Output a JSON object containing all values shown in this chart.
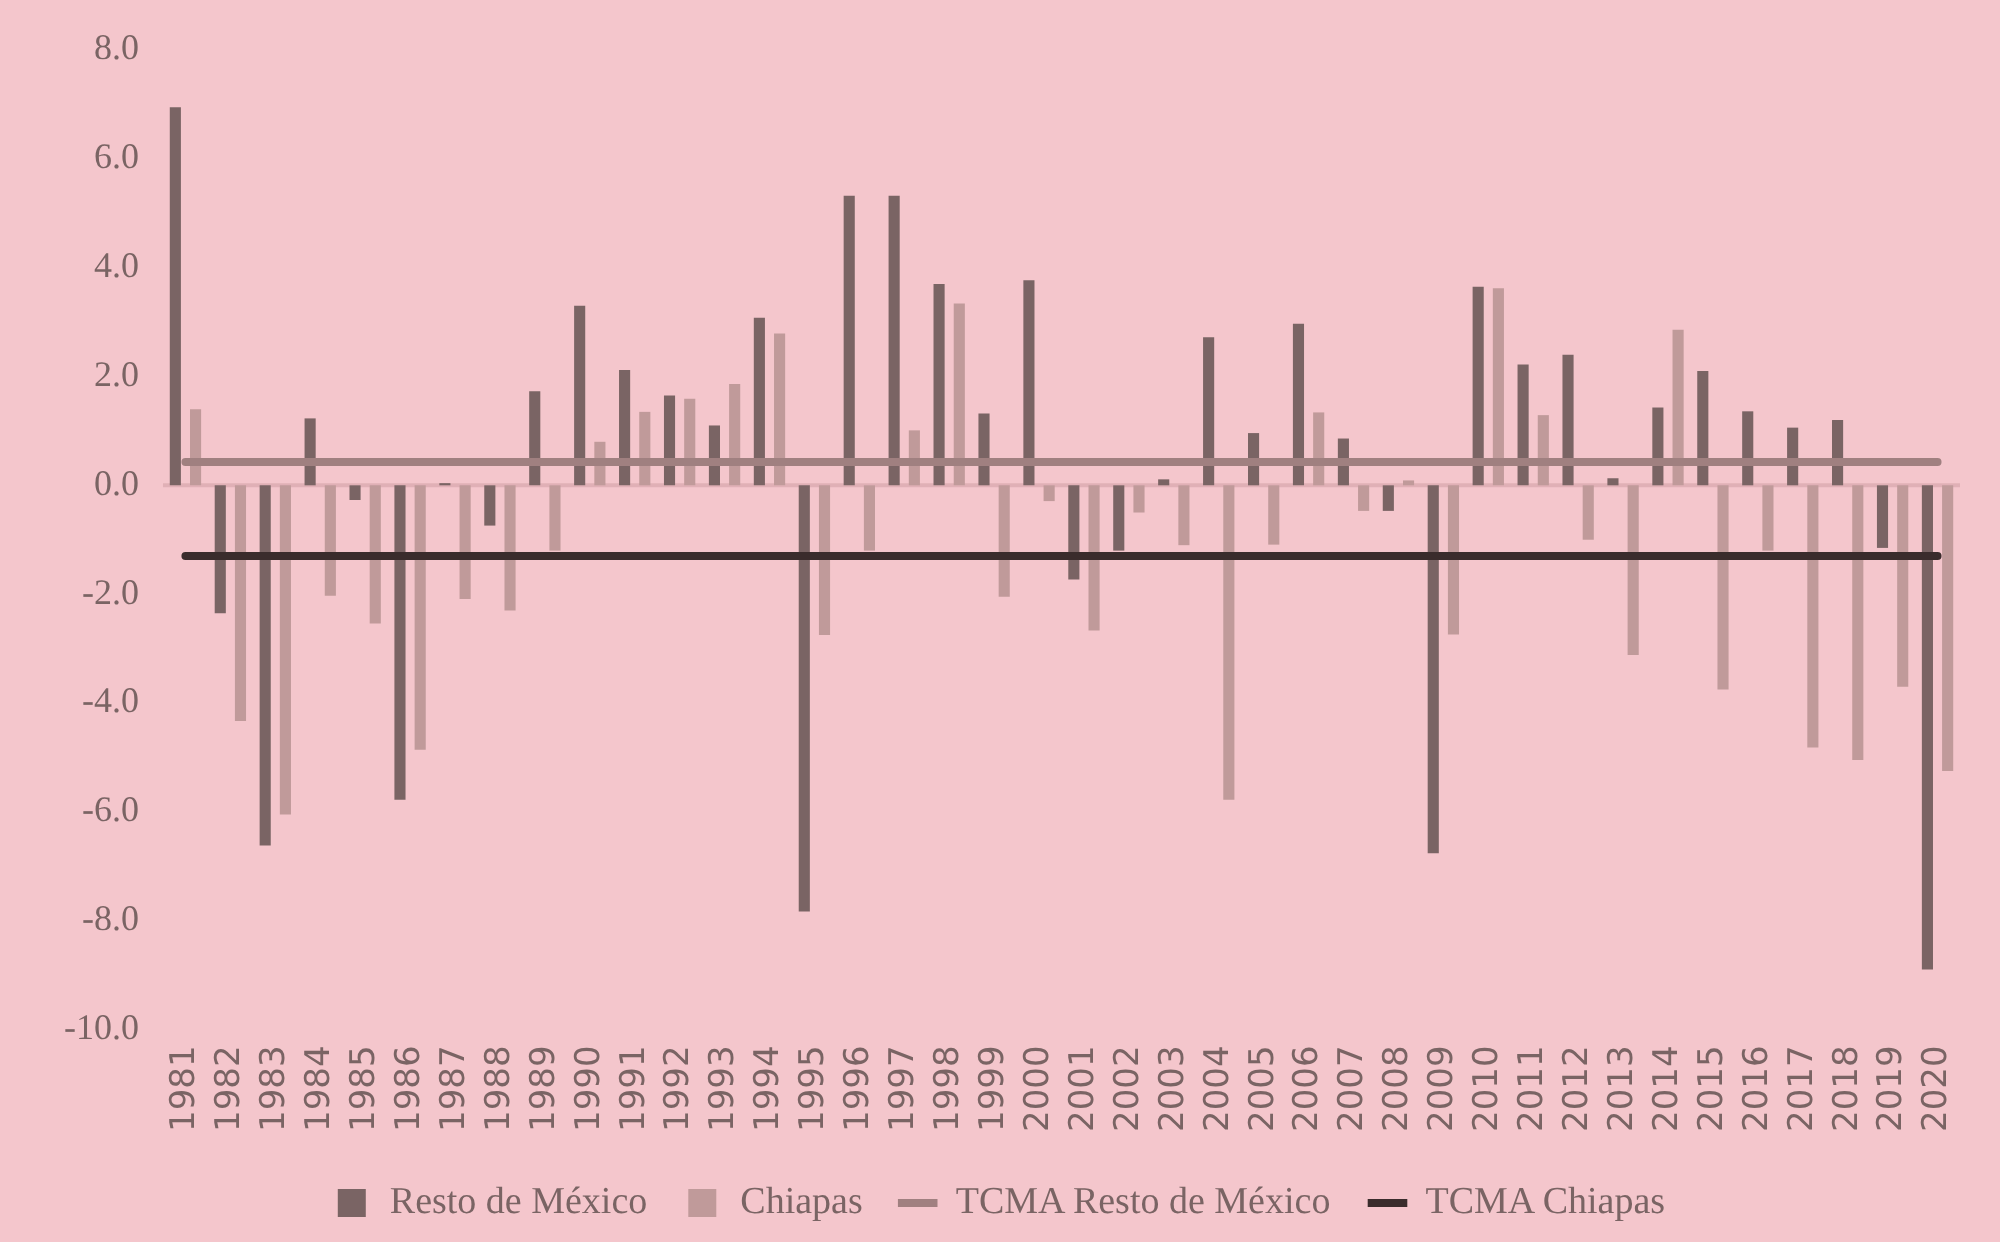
{
  "chart_data": {
    "type": "bar",
    "categories": [
      "1981",
      "1982",
      "1983",
      "1984",
      "1985",
      "1986",
      "1987",
      "1988",
      "1989",
      "1990",
      "1991",
      "1992",
      "1993",
      "1994",
      "1995",
      "1996",
      "1997",
      "1998",
      "1999",
      "2000",
      "2001",
      "2002",
      "2003",
      "2004",
      "2005",
      "2006",
      "2007",
      "2008",
      "2009",
      "2010",
      "2011",
      "2012",
      "2013",
      "2014",
      "2015",
      "2016",
      "2017",
      "2018",
      "2019",
      "2020"
    ],
    "series": [
      {
        "name": "Resto de México",
        "color": "#7a6464",
        "values": [
          6.95,
          -2.35,
          -6.62,
          1.23,
          -0.27,
          -5.78,
          0.04,
          -0.74,
          1.73,
          3.3,
          2.12,
          1.65,
          1.1,
          3.08,
          -7.83,
          5.32,
          5.32,
          3.7,
          1.32,
          3.77,
          -1.73,
          -1.2,
          0.11,
          2.72,
          0.96,
          2.97,
          0.86,
          -0.47,
          -6.76,
          3.65,
          2.22,
          2.4,
          0.13,
          1.43,
          2.1,
          1.36,
          1.06,
          1.2,
          -1.15,
          -8.9
        ]
      },
      {
        "name": "Chiapas",
        "color": "#c09a9a",
        "values": [
          1.4,
          -4.33,
          -6.05,
          -2.03,
          -2.54,
          -4.86,
          -2.09,
          -2.3,
          -1.2,
          0.8,
          1.35,
          1.59,
          1.86,
          2.79,
          -2.75,
          -1.2,
          1.01,
          3.34,
          -2.05,
          -0.29,
          -2.67,
          -0.5,
          -1.1,
          -5.78,
          -1.09,
          1.34,
          -0.47,
          0.09,
          -2.74,
          3.62,
          1.29,
          -1.0,
          -3.12,
          2.86,
          -3.75,
          -1.2,
          -4.82,
          -5.05,
          -3.7,
          -5.25
        ]
      },
      {
        "name": "TCMA Resto de México",
        "type": "line",
        "color": "#a08080",
        "values": [
          0.43,
          0.43,
          0.43,
          0.43,
          0.43,
          0.43,
          0.43,
          0.43,
          0.43,
          0.43,
          0.43,
          0.43,
          0.43,
          0.43,
          0.43,
          0.43,
          0.43,
          0.43,
          0.43,
          0.43,
          0.43,
          0.43,
          0.43,
          0.43,
          0.43,
          0.43,
          0.43,
          0.43,
          0.43,
          0.43,
          0.43,
          0.43,
          0.43,
          0.43,
          0.43,
          0.43,
          0.43,
          0.43,
          0.43,
          0.43
        ]
      },
      {
        "name": "TCMA Chiapas",
        "type": "line",
        "color": "#3a2c2c",
        "values": [
          -1.3,
          -1.3,
          -1.3,
          -1.3,
          -1.3,
          -1.3,
          -1.3,
          -1.3,
          -1.3,
          -1.3,
          -1.3,
          -1.3,
          -1.3,
          -1.3,
          -1.3,
          -1.3,
          -1.3,
          -1.3,
          -1.3,
          -1.3,
          -1.3,
          -1.3,
          -1.3,
          -1.3,
          -1.3,
          -1.3,
          -1.3,
          -1.3,
          -1.3,
          -1.3,
          -1.3,
          -1.3,
          -1.3,
          -1.3,
          -1.3,
          -1.3,
          -1.3,
          -1.3,
          -1.3,
          -1.3
        ]
      }
    ],
    "ylim": [
      -10,
      8
    ],
    "yticks": [
      {
        "value": -10,
        "label": "-10.0"
      },
      {
        "value": -8,
        "label": "-8.0"
      },
      {
        "value": -6,
        "label": "-6.0"
      },
      {
        "value": -4,
        "label": "-4.0"
      },
      {
        "value": -2,
        "label": "-2.0"
      },
      {
        "value": 0,
        "label": "0.0"
      },
      {
        "value": 2,
        "label": "2.0"
      },
      {
        "value": 4,
        "label": "4.0"
      },
      {
        "value": 6,
        "label": "6.0"
      },
      {
        "value": 8,
        "label": "8.0"
      }
    ],
    "ref_lines": [
      {
        "axis": "y",
        "value": 0,
        "color": "#e0b0b6"
      }
    ],
    "grid": false,
    "legend": "bottom"
  }
}
